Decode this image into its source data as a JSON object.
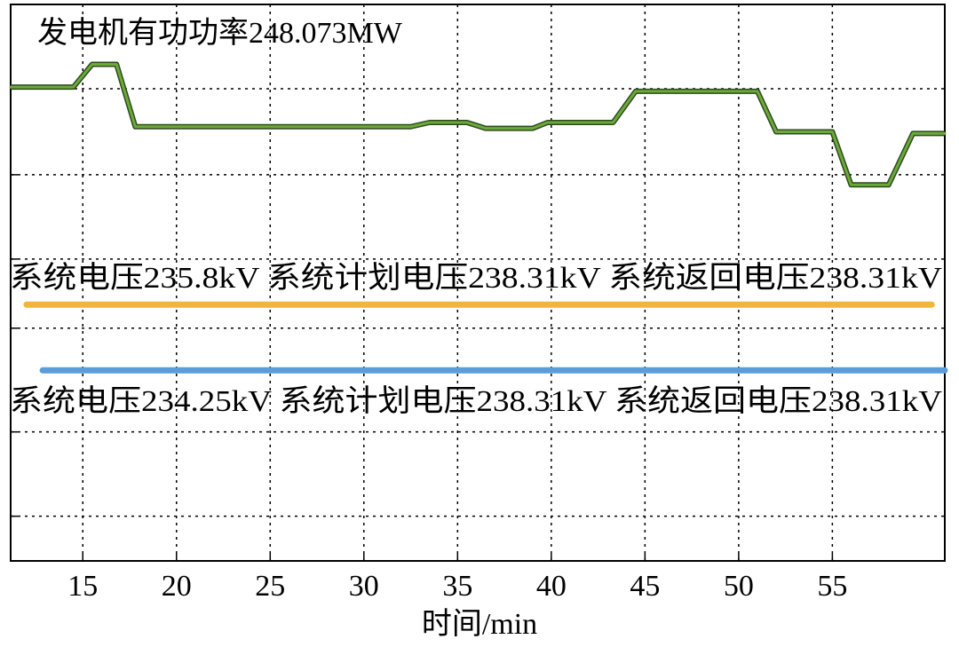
{
  "chart_data": {
    "type": "line",
    "annotations": [
      "发电机有功功率248.073MW",
      "系统电压235.8kV  系统计划电压238.31kV 系统返回电压238.31kV",
      "系统电压234.25kV  系统计划电压238.31kV 系统返回电压238.31kV"
    ],
    "xlabel": "时间/min",
    "xlim": [
      11.15,
      61
    ],
    "xticks": [
      15,
      20,
      25,
      30,
      35,
      40,
      45,
      50,
      55
    ],
    "ylim": [
      0,
      6.6
    ],
    "yticks": [
      0.53,
      1.53,
      2.76,
      3.58,
      4.58,
      5.6
    ],
    "grid": true,
    "series": [
      {
        "color": "#6aaa3a",
        "x": [
          11.15,
          14.5,
          15.5,
          16.8,
          17.8,
          32.5,
          33.5,
          35.5,
          36.5,
          39,
          39.8,
          43.3,
          44.5,
          51,
          52,
          55,
          56,
          58,
          59.3,
          61
        ],
        "values": [
          5.62,
          5.62,
          5.89,
          5.89,
          5.15,
          5.15,
          5.2,
          5.2,
          5.13,
          5.13,
          5.2,
          5.2,
          5.57,
          5.57,
          5.09,
          5.09,
          4.46,
          4.46,
          5.07,
          5.07
        ]
      },
      {
        "color": "#f0b63c",
        "x": [
          12.0,
          60.3
        ],
        "values": [
          3.04,
          3.04
        ]
      },
      {
        "color": "#5b9ddb",
        "x": [
          12.86,
          61
        ],
        "values": [
          2.26,
          2.26
        ]
      }
    ]
  }
}
